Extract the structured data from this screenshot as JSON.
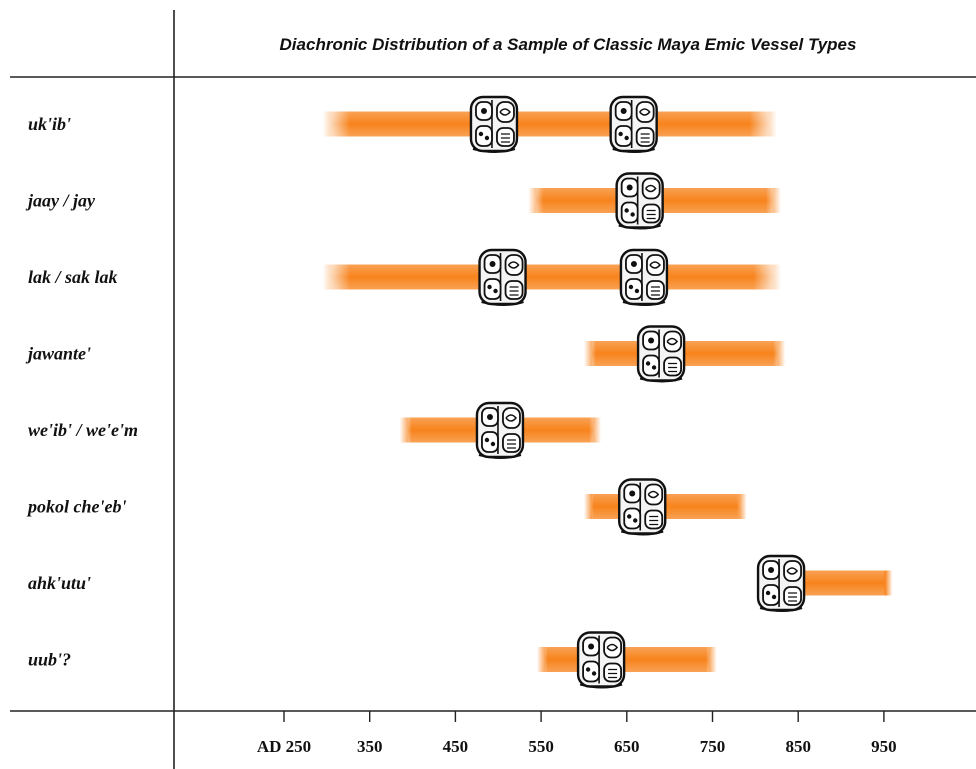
{
  "chart_data": {
    "type": "bar",
    "title": "Diachronic Distribution of a Sample of Classic Maya Emic Vessel Types",
    "x_ticks": [
      {
        "value": 250,
        "label": "AD 250"
      },
      {
        "value": 350,
        "label": "350"
      },
      {
        "value": 450,
        "label": "450"
      },
      {
        "value": 550,
        "label": "550"
      },
      {
        "value": 650,
        "label": "650"
      },
      {
        "value": 750,
        "label": "750"
      },
      {
        "value": 850,
        "label": "850"
      },
      {
        "value": 950,
        "label": "950"
      }
    ],
    "xlim": [
      250,
      950
    ],
    "categories": [
      "uk'ib'",
      "jaay / jay",
      "lak / sak lak",
      "jawante'",
      "we'ib' / we'e'm",
      "pokol che'eb'",
      "ahk'utu'",
      "uub'?"
    ],
    "ranges": [
      {
        "start": 295,
        "end": 825,
        "glyphs": [
          495,
          658
        ]
      },
      {
        "start": 535,
        "end": 830,
        "glyphs": [
          665
        ]
      },
      {
        "start": 295,
        "end": 830,
        "glyphs": [
          505,
          670
        ]
      },
      {
        "start": 600,
        "end": 835,
        "glyphs": [
          690
        ]
      },
      {
        "start": 385,
        "end": 620,
        "glyphs": [
          502
        ]
      },
      {
        "start": 600,
        "end": 790,
        "glyphs": [
          668
        ]
      },
      {
        "start": 815,
        "end": 960,
        "glyphs": [
          830
        ]
      },
      {
        "start": 545,
        "end": 755,
        "glyphs": [
          620
        ]
      }
    ],
    "bar_color": "#f7831c",
    "grid": false
  }
}
